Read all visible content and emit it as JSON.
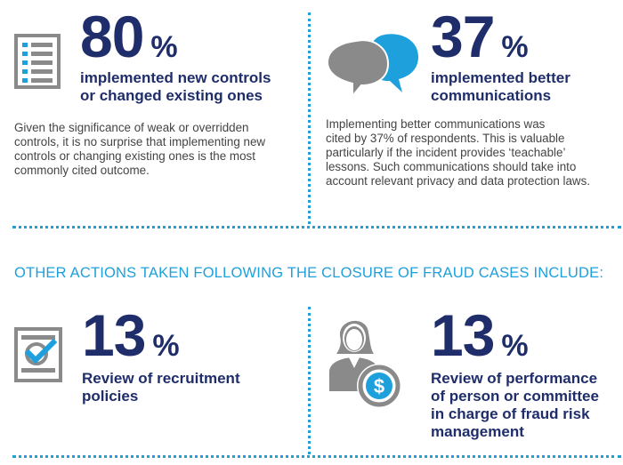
{
  "stats": [
    {
      "value": "80",
      "unit": "%",
      "headline_line1": "implemented new controls",
      "headline_line2": "or changed existing ones",
      "desc_lines": [
        "Given the significance of weak or overridden",
        "controls, it is no surprise that implementing new",
        "controls or changing existing ones is the most",
        "commonly cited outcome."
      ],
      "icon": "checklist-icon"
    },
    {
      "value": "37",
      "unit": "%",
      "headline_line1": "implemented better",
      "headline_line2": "communications",
      "desc_lines": [
        "Implementing better communications was",
        "cited by 37% of respondents. This is valuable",
        "particularly if the incident provides ‘teachable’",
        "lessons. Such communications should take into",
        "account relevant privacy and data protection laws."
      ],
      "icon": "speech-bubbles-icon"
    },
    {
      "value": "13",
      "unit": "%",
      "headline_lines": [
        "Review of recruitment",
        "policies"
      ],
      "icon": "checkmark-document-icon"
    },
    {
      "value": "13",
      "unit": "%",
      "headline_lines": [
        "Review of performance",
        "of person or committee",
        "in charge of fraud risk",
        "management"
      ],
      "icon": "person-dollar-icon"
    }
  ],
  "section_title": "OTHER ACTIONS TAKEN FOLLOWING THE CLOSURE OF FRAUD CASES INCLUDE:",
  "colors": {
    "navy": "#1f2d6b",
    "accent": "#1ea0dc",
    "icon_gray": "#8a8a8a"
  }
}
